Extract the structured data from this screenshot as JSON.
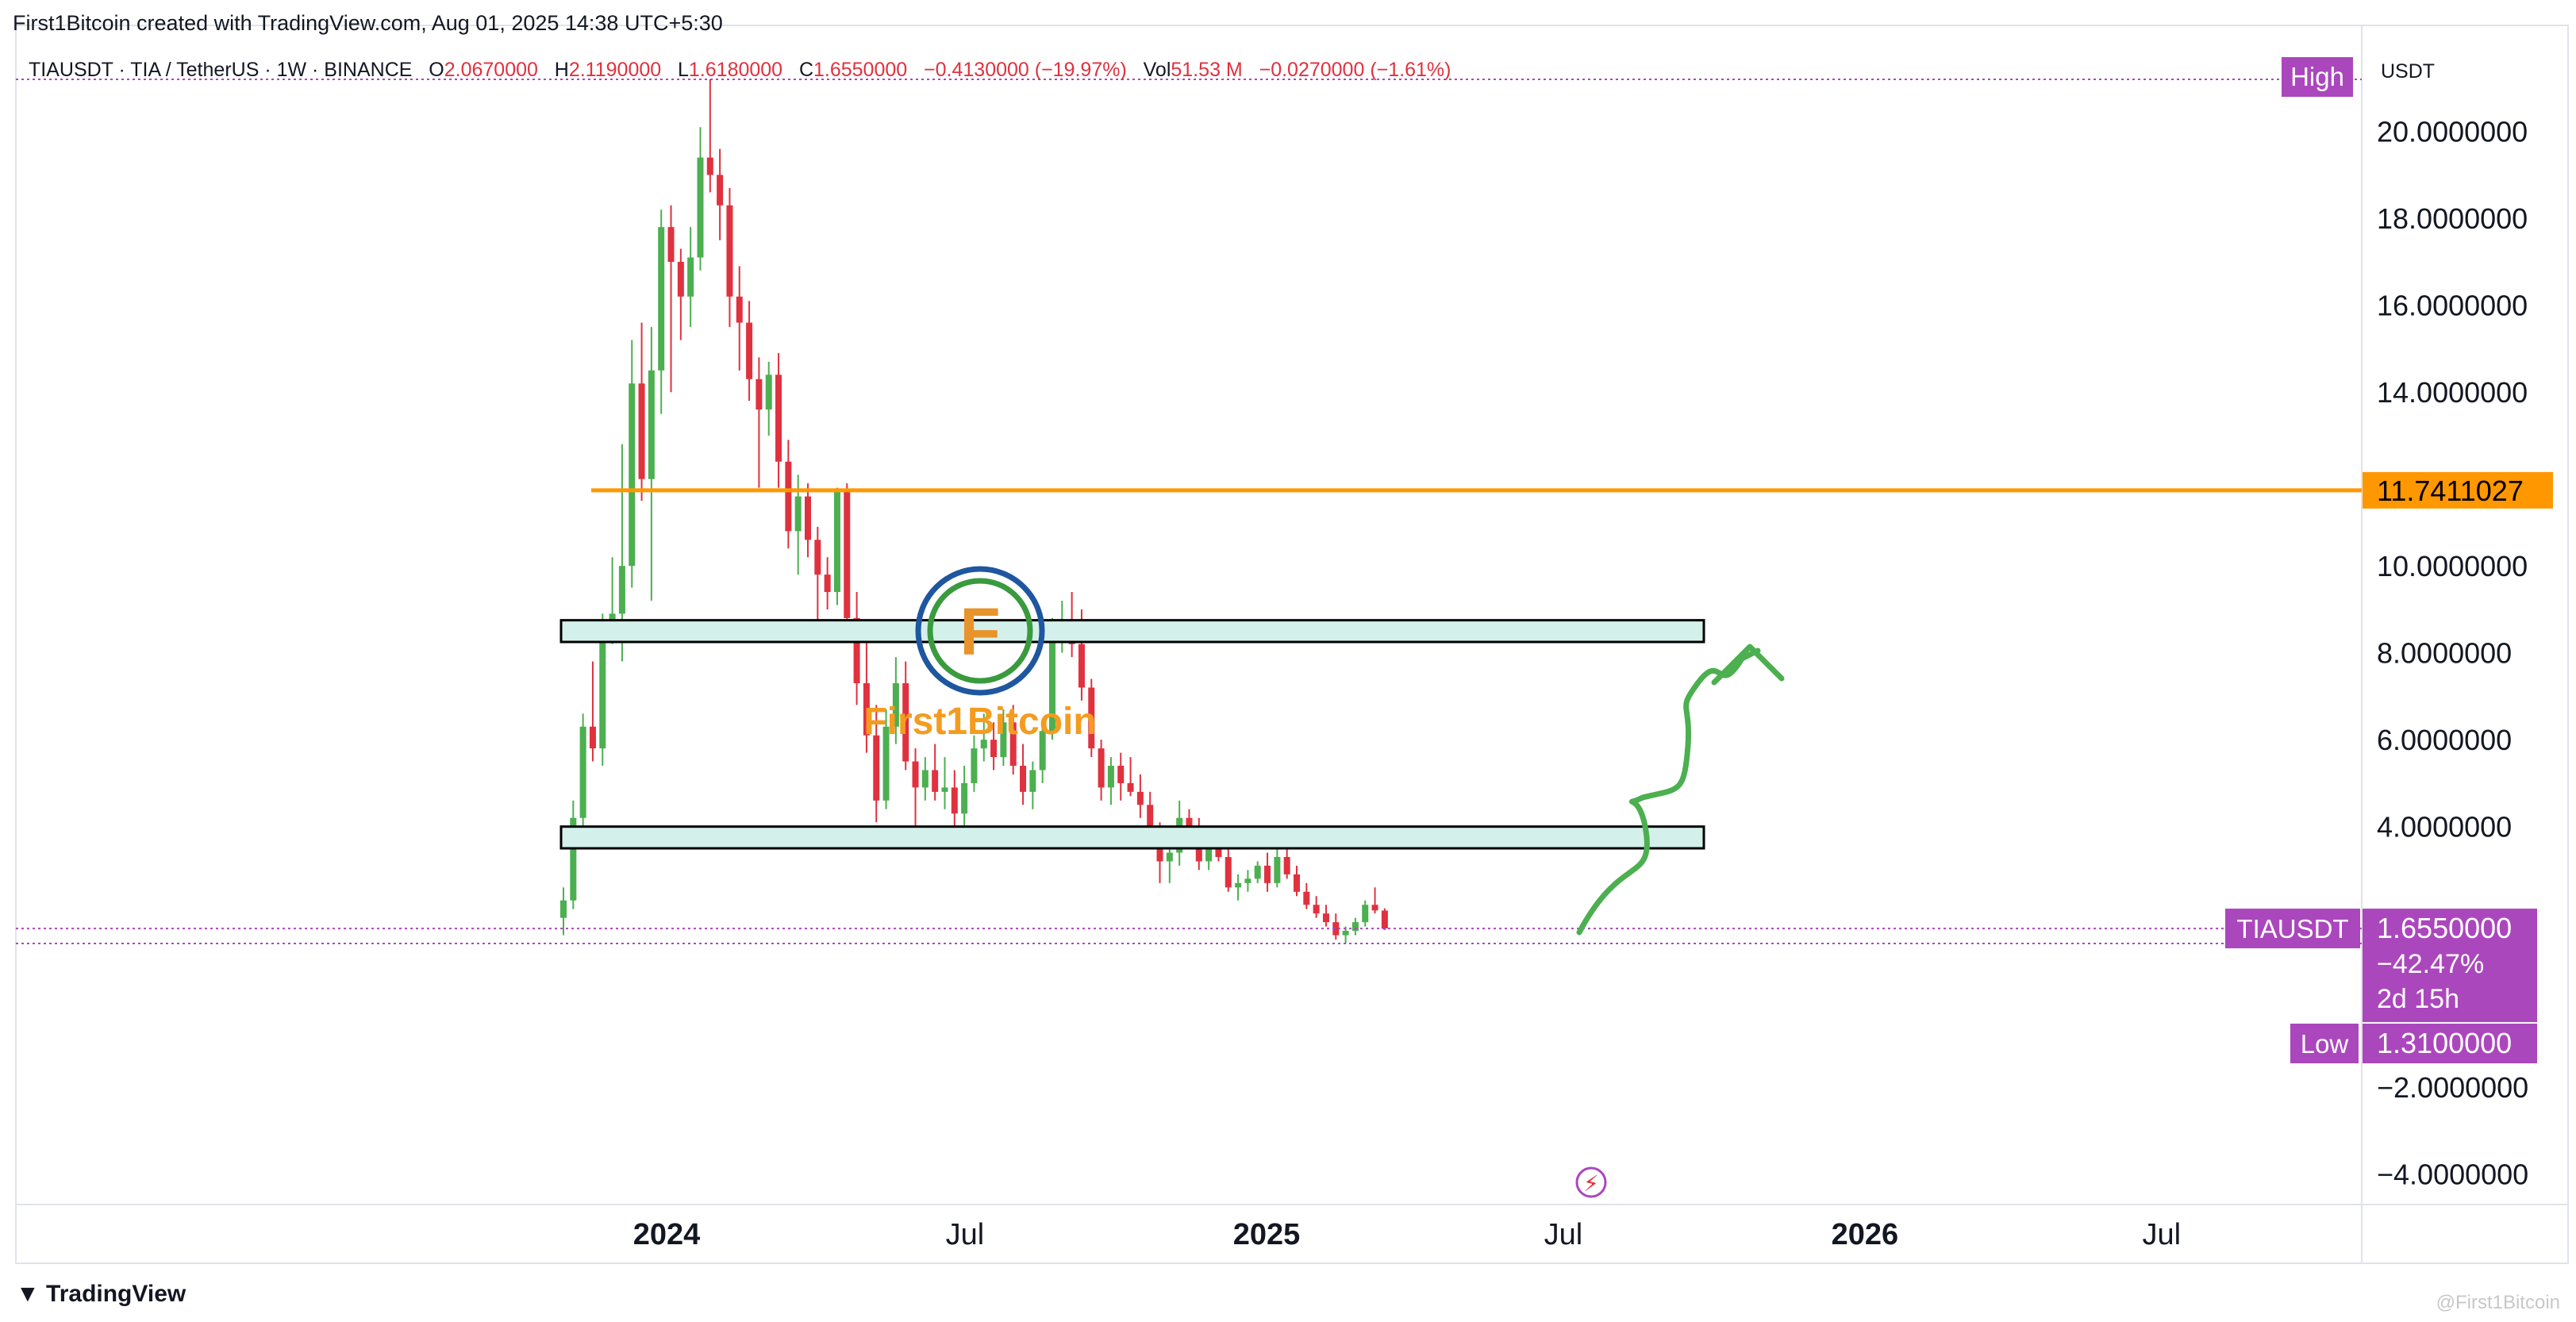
{
  "header": {
    "attribution": "First1Bitcoin created with TradingView.com, Aug 01, 2025 14:38 UTC+5:30",
    "symbol_desc": "TIAUSDT · TIA / TetherUS · 1W · BINANCE",
    "open_label": "O",
    "open_value": "2.0670000",
    "high_label": "H",
    "high_value": "2.1190000",
    "low_label": "L",
    "low_value": "1.6180000",
    "close_label": "C",
    "close_value": "1.6550000",
    "change": "−0.4130000 (−19.97%)",
    "vol_label": "Vol",
    "vol_value": "51.53 M",
    "vol_change": "−0.0270000 (−1.61%)"
  },
  "footer": {
    "logo_text": "TradingView",
    "watermark": "@First1Bitcoin"
  },
  "brand": {
    "text": "First1Bitcoin"
  },
  "colors": {
    "up": "#4caf50",
    "down": "#e0313f",
    "resistance": "#ff9800",
    "tag": "#ab47bc",
    "zone_fill": "#d4f0eb",
    "arrow": "#4caf50"
  },
  "chart_data": {
    "type": "candlestick",
    "symbol": "TIAUSDT",
    "quote": "USDT",
    "y_axis": {
      "ticks": [
        20,
        18,
        16,
        14,
        10,
        8,
        6,
        4,
        -2,
        -4
      ],
      "tick_labels": [
        "20.0000000",
        "18.0000000",
        "16.0000000",
        "14.0000000",
        "10.0000000",
        "8.0000000",
        "6.0000000",
        "4.0000000",
        "−2.0000000",
        "−4.0000000"
      ],
      "range": [
        -4.7,
        21.2
      ]
    },
    "x_axis": {
      "labels": [
        {
          "text": "2024",
          "date": "2024-01-01",
          "bold": true
        },
        {
          "text": "Jul",
          "date": "2024-07-01",
          "bold": false
        },
        {
          "text": "2025",
          "date": "2025-01-01",
          "bold": true
        },
        {
          "text": "Jul",
          "date": "2025-07-01",
          "bold": false
        },
        {
          "text": "2026",
          "date": "2026-01-01",
          "bold": true
        },
        {
          "text": "Jul",
          "date": "2026-07-01",
          "bold": false
        }
      ]
    },
    "candles": [
      [
        1.9,
        2.6,
        1.5,
        2.3
      ],
      [
        2.3,
        4.6,
        2.1,
        4.2
      ],
      [
        4.2,
        6.6,
        4.0,
        6.3
      ],
      [
        6.3,
        7.8,
        5.5,
        5.8
      ],
      [
        5.8,
        8.9,
        5.4,
        8.6
      ],
      [
        8.6,
        10.2,
        8.2,
        8.9
      ],
      [
        8.9,
        12.8,
        7.8,
        10.0
      ],
      [
        10.0,
        15.2,
        9.5,
        14.2
      ],
      [
        14.2,
        15.6,
        11.5,
        12.0
      ],
      [
        12.0,
        15.5,
        9.2,
        14.5
      ],
      [
        14.5,
        18.2,
        13.5,
        17.8
      ],
      [
        17.8,
        18.3,
        14.0,
        17.0
      ],
      [
        17.0,
        17.3,
        15.2,
        16.2
      ],
      [
        16.2,
        17.8,
        15.5,
        17.1
      ],
      [
        17.1,
        20.1,
        16.8,
        19.4
      ],
      [
        19.4,
        21.2,
        18.6,
        19.0
      ],
      [
        19.0,
        19.6,
        17.5,
        18.3
      ],
      [
        18.3,
        18.7,
        15.5,
        16.2
      ],
      [
        16.2,
        16.9,
        14.5,
        15.6
      ],
      [
        15.6,
        16.1,
        13.8,
        14.3
      ],
      [
        14.3,
        14.8,
        11.8,
        13.6
      ],
      [
        13.6,
        14.7,
        13.0,
        14.4
      ],
      [
        14.4,
        14.9,
        11.8,
        12.4
      ],
      [
        12.4,
        12.9,
        10.4,
        10.8
      ],
      [
        10.8,
        12.1,
        9.8,
        11.6
      ],
      [
        11.6,
        11.9,
        10.2,
        10.6
      ],
      [
        10.6,
        10.9,
        8.6,
        9.8
      ],
      [
        9.8,
        10.2,
        9.0,
        9.4
      ],
      [
        9.4,
        11.8,
        9.1,
        11.7
      ],
      [
        11.7,
        11.9,
        8.6,
        8.8
      ],
      [
        8.8,
        9.4,
        6.8,
        7.3
      ],
      [
        7.3,
        8.4,
        5.7,
        6.1
      ],
      [
        6.1,
        6.8,
        4.1,
        4.6
      ],
      [
        4.6,
        6.7,
        4.4,
        6.3
      ],
      [
        6.3,
        7.9,
        5.9,
        7.3
      ],
      [
        7.3,
        7.8,
        5.3,
        5.5
      ],
      [
        5.5,
        5.8,
        4.0,
        4.9
      ],
      [
        4.9,
        5.6,
        4.6,
        5.3
      ],
      [
        5.3,
        5.9,
        4.6,
        4.8
      ],
      [
        4.8,
        5.6,
        4.4,
        4.9
      ],
      [
        4.9,
        5.3,
        4.0,
        4.3
      ],
      [
        4.3,
        5.4,
        3.9,
        5.0
      ],
      [
        5.0,
        6.1,
        4.8,
        5.8
      ],
      [
        5.8,
        6.6,
        5.5,
        6.0
      ],
      [
        6.0,
        6.4,
        5.3,
        5.6
      ],
      [
        5.6,
        6.7,
        5.4,
        6.4
      ],
      [
        6.4,
        6.8,
        5.2,
        5.4
      ],
      [
        5.4,
        5.9,
        4.5,
        4.8
      ],
      [
        4.8,
        5.5,
        4.4,
        5.3
      ],
      [
        5.3,
        6.4,
        5.0,
        6.2
      ],
      [
        6.2,
        8.8,
        6.0,
        8.5
      ],
      [
        8.5,
        9.2,
        8.0,
        8.6
      ],
      [
        8.6,
        9.4,
        7.9,
        8.2
      ],
      [
        8.2,
        9.0,
        6.9,
        7.2
      ],
      [
        7.2,
        7.4,
        5.6,
        5.8
      ],
      [
        5.8,
        6.0,
        4.6,
        4.9
      ],
      [
        4.9,
        5.6,
        4.5,
        5.4
      ],
      [
        5.4,
        5.7,
        4.6,
        5.0
      ],
      [
        5.0,
        5.6,
        4.7,
        4.8
      ],
      [
        4.8,
        5.2,
        4.2,
        4.5
      ],
      [
        4.5,
        4.8,
        3.5,
        3.8
      ],
      [
        3.8,
        4.1,
        2.7,
        3.2
      ],
      [
        3.2,
        3.7,
        2.7,
        3.4
      ],
      [
        3.4,
        4.6,
        3.1,
        4.2
      ],
      [
        4.2,
        4.4,
        3.5,
        3.8
      ],
      [
        3.8,
        4.2,
        3.0,
        3.2
      ],
      [
        3.2,
        3.9,
        3.0,
        3.7
      ],
      [
        3.7,
        3.9,
        3.2,
        3.3
      ],
      [
        3.3,
        3.6,
        2.5,
        2.6
      ],
      [
        2.6,
        2.9,
        2.3,
        2.7
      ],
      [
        2.7,
        3.0,
        2.5,
        2.8
      ],
      [
        2.8,
        3.2,
        2.7,
        3.1
      ],
      [
        3.1,
        3.4,
        2.5,
        2.7
      ],
      [
        2.7,
        3.5,
        2.6,
        3.3
      ],
      [
        3.3,
        3.5,
        2.8,
        2.9
      ],
      [
        2.9,
        3.1,
        2.4,
        2.5
      ],
      [
        2.5,
        2.7,
        2.1,
        2.2
      ],
      [
        2.2,
        2.4,
        1.9,
        2.0
      ],
      [
        2.0,
        2.2,
        1.7,
        1.8
      ],
      [
        1.8,
        2.0,
        1.4,
        1.5
      ],
      [
        1.5,
        1.7,
        1.31,
        1.6
      ],
      [
        1.6,
        1.9,
        1.5,
        1.8
      ],
      [
        1.8,
        2.3,
        1.7,
        2.2
      ],
      [
        2.2,
        2.6,
        2.0,
        2.07
      ],
      [
        2.067,
        2.119,
        1.618,
        1.655
      ]
    ],
    "horizontal_line": {
      "value": 11.7411027,
      "label": "11.7411027"
    },
    "zones": [
      {
        "low": 8.25,
        "high": 8.75
      },
      {
        "low": 3.5,
        "high": 4.0
      }
    ],
    "markers": {
      "high_tag": "High",
      "low_tag": "Low",
      "low_value": "1.3100000",
      "price_tag": "TIAUSDT",
      "price_value": "1.6550000",
      "price_change": "−42.47%",
      "countdown": "2d 15h"
    }
  }
}
